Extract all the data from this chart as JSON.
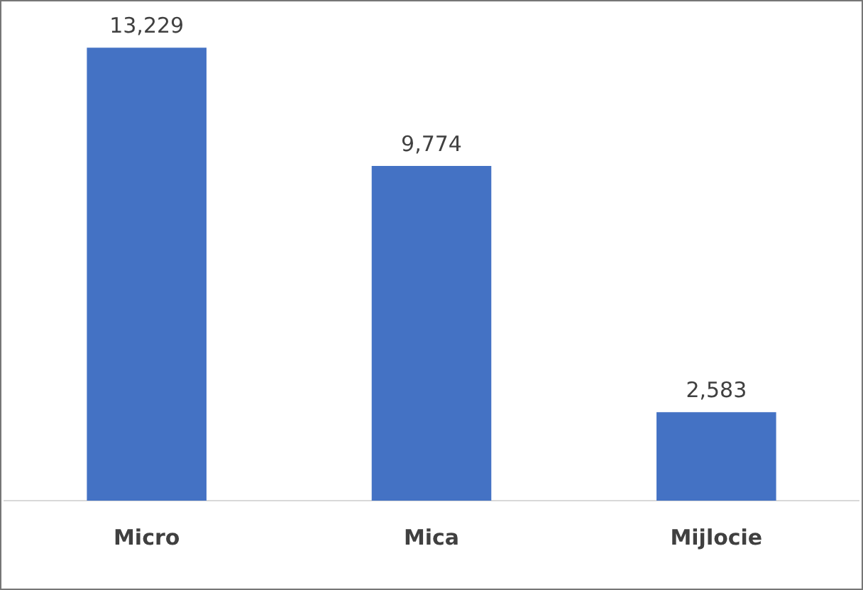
{
  "chart_data": {
    "type": "bar",
    "categories": [
      "Micro",
      "Mica",
      "Mijlocie"
    ],
    "values": [
      13229,
      9774,
      2583
    ],
    "color": "#4472c4",
    "data_labels": true,
    "value_labels": [
      "13,229",
      "9,774",
      "2,583"
    ],
    "grid": false,
    "legend": false
  }
}
